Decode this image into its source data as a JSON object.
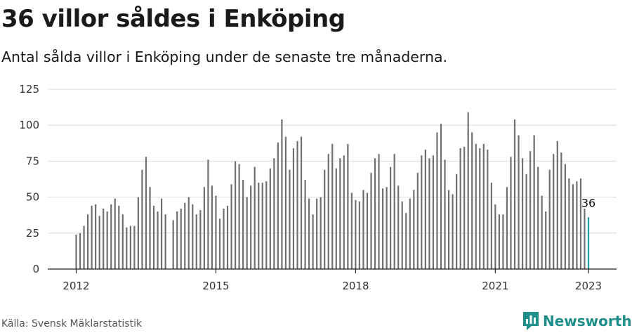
{
  "header": {
    "title": "36 villor såldes i Enköping",
    "subtitle": "Antal sålda villor i Enköping under de senaste tre månaderna."
  },
  "footer": {
    "source": "Källa: Svensk Mäklarstatistik",
    "brand": "Newsworthy"
  },
  "colors": {
    "bar": "#707070",
    "highlight": "#1e9aa0",
    "grid": "#dcdcdc",
    "axis": "#222222",
    "brand": "#1e8f8a"
  },
  "chart_data": {
    "type": "bar",
    "title": "36 villor såldes i Enköping",
    "subtitle": "Antal sålda villor i Enköping under de senaste tre månaderna.",
    "xlabel": "",
    "ylabel": "",
    "ylim": [
      0,
      125
    ],
    "yticks": [
      "0",
      "25",
      "50",
      "75",
      "100",
      "125"
    ],
    "xticks": [
      "2012",
      "2015",
      "2018",
      "2021",
      "2023"
    ],
    "grid": true,
    "start": "2012-01",
    "series": [
      {
        "name": "",
        "values": [
          24,
          25,
          30,
          38,
          44,
          45,
          37,
          42,
          40,
          45,
          49,
          44,
          38,
          29,
          30,
          30,
          50,
          69,
          78,
          57,
          44,
          40,
          49,
          38,
          null,
          34,
          40,
          42,
          46,
          50,
          45,
          38,
          41,
          57,
          76,
          58,
          51,
          35,
          42,
          44,
          59,
          75,
          73,
          62,
          50,
          58,
          71,
          60,
          60,
          61,
          70,
          77,
          88,
          104,
          92,
          69,
          84,
          89,
          92,
          62,
          49,
          38,
          49,
          50,
          69,
          80,
          87,
          70,
          77,
          79,
          87,
          53,
          48,
          47,
          55,
          53,
          67,
          77,
          80,
          56,
          57,
          71,
          80,
          58,
          47,
          39,
          49,
          55,
          67,
          79,
          83,
          77,
          79,
          95,
          101,
          76,
          55,
          52,
          66,
          84,
          85,
          109,
          95,
          87,
          84,
          87,
          83,
          60,
          45,
          38,
          38,
          57,
          78,
          104,
          93,
          77,
          66,
          82,
          93,
          71,
          51,
          40,
          69,
          80,
          89,
          81,
          73,
          63,
          59,
          61,
          63,
          42,
          36
        ]
      }
    ],
    "highlight": {
      "label": "36",
      "value": 36,
      "period": "2023-01"
    }
  }
}
